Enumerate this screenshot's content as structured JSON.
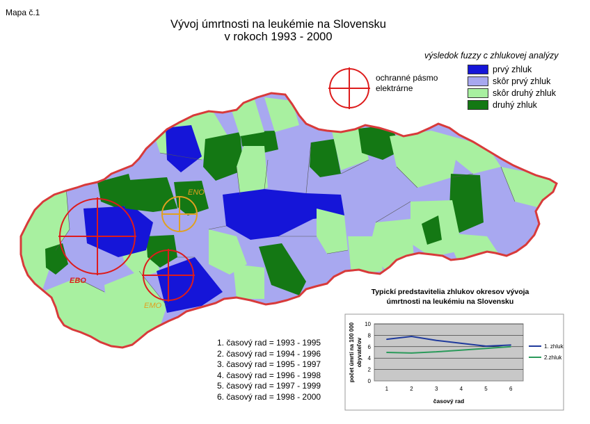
{
  "map_label": "Mapa č.1",
  "title_line1": "Vývoj úmrtnosti na leukémie na Slovensku",
  "title_line2": "v rokoch 1993 - 2000",
  "legend": {
    "title": "výsledok fuzzy c zhlukovej analýzy",
    "items": [
      {
        "label": "prvý zhluk",
        "color": "#1515d8"
      },
      {
        "label": "skôr prvý zhluk",
        "color": "#a8a8f0"
      },
      {
        "label": "skôr druhý zhluk",
        "color": "#a8f0a0"
      },
      {
        "label": "druhý zhluk",
        "color": "#147814"
      }
    ]
  },
  "buffer_label_line1": "ochranné pásmo",
  "buffer_label_line2": "elektrárne",
  "plants": [
    {
      "label": "EBO",
      "color": "#dd1c1c"
    },
    {
      "label": "EMO",
      "color": "#e0a020"
    },
    {
      "label": "ENO",
      "color": "#e0a020"
    }
  ],
  "time_series": [
    "1. časový rad = 1993 - 1995",
    "2. časový rad = 1994 - 1996",
    "3. časový rad = 1995 - 1997",
    "4. časový rad = 1996 - 1998",
    "5. časový rad = 1997 - 1999",
    "6. časový rad = 1998 - 2000"
  ],
  "chart_data": {
    "type": "line",
    "title": "Typickí predstavitelia zhlukov okresov vývoja úmrtnosti na leukémiu na Slovensku",
    "title_line1": "Typickí predstavitelia zhlukov okresov vývoja",
    "title_line2": "úmrtnosti na leukémiu na Slovensku",
    "xlabel": "časový rad",
    "ylabel": "počet úmrtí na 100 000 obyvateľov",
    "ylabel_line1": "počet úmrtí na 100 000",
    "ylabel_line2": "obyvateľov",
    "x": [
      1,
      2,
      3,
      4,
      5,
      6
    ],
    "ylim": [
      0,
      10
    ],
    "yticks": [
      0,
      2,
      4,
      6,
      8,
      10
    ],
    "grid": true,
    "legend_position": "right",
    "series": [
      {
        "name": "1. zhluk",
        "color": "#1f3a9c",
        "values": [
          7.3,
          7.8,
          7.1,
          6.6,
          6.1,
          6.3
        ]
      },
      {
        "name": "2.zhluk",
        "color": "#2a9a5a",
        "values": [
          5.0,
          4.9,
          5.1,
          5.4,
          5.7,
          6.0
        ]
      }
    ]
  }
}
